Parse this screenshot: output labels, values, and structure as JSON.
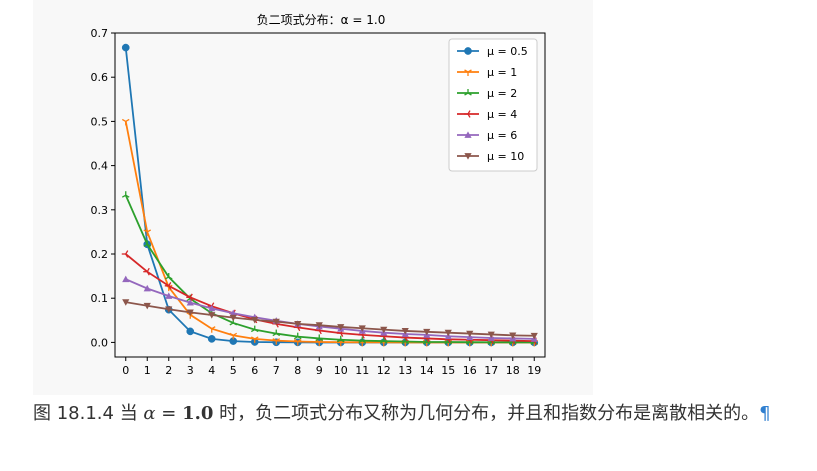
{
  "caption": {
    "prefix": "图 18.1.4 当 ",
    "alpha_symbol": "α",
    "equals": " = ",
    "value": "1.0",
    "suffix": " 时，负二项式分布又称为几何分布，并且和指数分布是离散相关的。",
    "pilcrow": "¶"
  },
  "chart_data": {
    "type": "line",
    "title": "负二项式分布：α = 1.0",
    "xlabel": "",
    "ylabel": "",
    "x": [
      0,
      1,
      2,
      3,
      4,
      5,
      6,
      7,
      8,
      9,
      10,
      11,
      12,
      13,
      14,
      15,
      16,
      17,
      18,
      19
    ],
    "xlim": [
      -0.5,
      19.5
    ],
    "ylim": [
      -0.033,
      0.7
    ],
    "yticks": [
      0.0,
      0.1,
      0.2,
      0.3,
      0.4,
      0.5,
      0.6,
      0.7
    ],
    "ytick_labels": [
      "0.0",
      "0.1",
      "0.2",
      "0.3",
      "0.4",
      "0.5",
      "0.6",
      "0.7"
    ],
    "xtick_labels": [
      "0",
      "1",
      "2",
      "3",
      "4",
      "5",
      "6",
      "7",
      "8",
      "9",
      "10",
      "11",
      "12",
      "13",
      "14",
      "15",
      "16",
      "17",
      "18",
      "19"
    ],
    "grid": false,
    "legend_position": "top-right",
    "series": [
      {
        "name": "μ = 0.5",
        "color": "#1f77b4",
        "marker": "circle",
        "values": [
          0.667,
          0.222,
          0.074,
          0.025,
          0.008,
          0.003,
          0.001,
          0.0003,
          0.0001,
          0.0,
          0.0,
          0.0,
          0.0,
          0.0,
          0.0,
          0.0,
          0.0,
          0.0,
          0.0,
          0.0
        ]
      },
      {
        "name": "μ = 1",
        "color": "#ff7f0e",
        "marker": "tri_down",
        "values": [
          0.5,
          0.25,
          0.125,
          0.0625,
          0.031,
          0.016,
          0.008,
          0.004,
          0.002,
          0.001,
          0.0005,
          0.0002,
          0.0001,
          0.0,
          0.0,
          0.0,
          0.0,
          0.0,
          0.0,
          0.0
        ]
      },
      {
        "name": "μ = 2",
        "color": "#2ca02c",
        "marker": "tri_up",
        "values": [
          0.333,
          0.222,
          0.148,
          0.099,
          0.066,
          0.044,
          0.029,
          0.02,
          0.013,
          0.009,
          0.006,
          0.004,
          0.003,
          0.002,
          0.001,
          0.001,
          0.0005,
          0.0003,
          0.0002,
          0.0001
        ]
      },
      {
        "name": "μ = 4",
        "color": "#d62728",
        "marker": "tri_left",
        "values": [
          0.2,
          0.16,
          0.128,
          0.102,
          0.082,
          0.066,
          0.052,
          0.042,
          0.034,
          0.027,
          0.021,
          0.017,
          0.014,
          0.011,
          0.009,
          0.007,
          0.006,
          0.005,
          0.004,
          0.003
        ]
      },
      {
        "name": "μ = 6",
        "color": "#9467bd",
        "marker": "triangle_up",
        "values": [
          0.143,
          0.122,
          0.105,
          0.09,
          0.077,
          0.066,
          0.057,
          0.049,
          0.042,
          0.036,
          0.031,
          0.026,
          0.022,
          0.019,
          0.017,
          0.014,
          0.012,
          0.01,
          0.009,
          0.008
        ]
      },
      {
        "name": "μ = 10",
        "color": "#8c564b",
        "marker": "triangle_down",
        "values": [
          0.091,
          0.083,
          0.075,
          0.068,
          0.062,
          0.056,
          0.051,
          0.047,
          0.042,
          0.039,
          0.035,
          0.032,
          0.029,
          0.026,
          0.024,
          0.022,
          0.02,
          0.018,
          0.016,
          0.015
        ]
      }
    ]
  }
}
